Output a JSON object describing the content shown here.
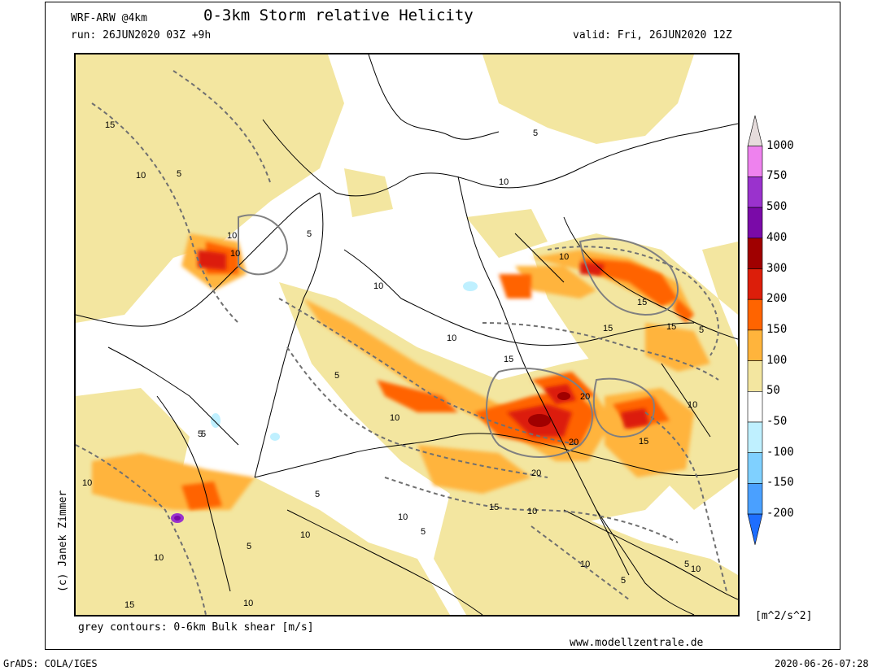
{
  "header": {
    "model": "WRF-ARW @4km",
    "title": "0-3km Storm relative Helicity",
    "run": "run: 26JUN2020 03Z +9h",
    "valid": "valid: Fri, 26JUN2020 12Z"
  },
  "copyright": "(c) Janek Zimmer",
  "caption": "grey contours: 0-6km Bulk shear [m/s]",
  "website": "www.modellzentrale.de",
  "footer": {
    "left": "GrADS: COLA/IGES",
    "right": "2020-06-26-07:28"
  },
  "colorbar": {
    "unit": "[m^2/s^2]",
    "labels": [
      "1000",
      "750",
      "500",
      "400",
      "300",
      "200",
      "150",
      "100",
      "50",
      "-50",
      "-100",
      "-150",
      "-200"
    ],
    "colors": [
      "#e6dcdc",
      "#ee82ee",
      "#9a32cd",
      "#7a0aa8",
      "#a00000",
      "#dc1e0a",
      "#ff6400",
      "#ffb43c",
      "#f3e6a0",
      "#ffffff",
      "#bff0ff",
      "#7fd0ff",
      "#4aa0ff",
      "#1e6eff"
    ]
  },
  "contour_labels": [
    "15",
    "10",
    "5",
    "10",
    "10",
    "5",
    "10",
    "5",
    "5",
    "15",
    "20",
    "20",
    "20",
    "15",
    "15",
    "10",
    "10",
    "15",
    "5",
    "10",
    "15",
    "10",
    "5",
    "10",
    "10",
    "5",
    "10",
    "5",
    "15",
    "10",
    "5",
    "10",
    "10",
    "5",
    "10",
    "15",
    "10",
    "5",
    "5",
    "10"
  ]
}
